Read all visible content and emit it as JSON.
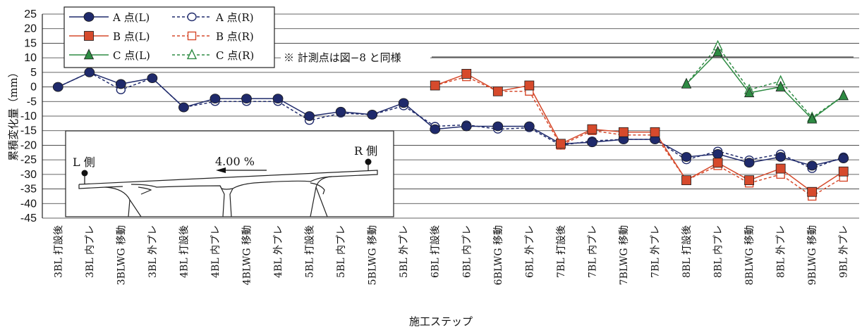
{
  "chart_data": {
    "type": "line",
    "title": "",
    "xlabel": "施工ステップ",
    "ylabel": "累積変化量（mm）",
    "ylim": [
      -45,
      25
    ],
    "yticks": [
      25,
      20,
      15,
      10,
      5,
      0,
      -5,
      -10,
      -15,
      -20,
      -25,
      -30,
      -35,
      -40,
      -45
    ],
    "grid": true,
    "legend_position": "top-left",
    "categories": [
      "3BL 打設後",
      "3BL 内プレ",
      "3BLWG 移動",
      "3BL 外プレ",
      "4BL 打設後",
      "4BL 内プレ",
      "4BLWG 移動",
      "4BL 外プレ",
      "5BL 打設後",
      "5BL 内プレ",
      "5BLWG 移動",
      "5BL 外プレ",
      "6BL 打設後",
      "6BL 内プレ",
      "6BLWG 移動",
      "6BL 外プレ",
      "7BL 打設後",
      "7BL 内プレ",
      "7BLWG 移動",
      "7BL 外プレ",
      "8BL 打設後",
      "8BL 内プレ",
      "8BLWG 移動",
      "8BL 外プレ",
      "9BLWG 移動",
      "9BL 外プレ"
    ],
    "series": [
      {
        "name": "A 点(L)",
        "color": "#1f2a6b",
        "marker": "circle-filled",
        "line": "solid",
        "values": [
          0,
          5,
          1,
          3,
          -7,
          -4,
          -4,
          -4,
          -10,
          -8.5,
          -9.5,
          -5.5,
          -14.5,
          -13.5,
          -13.5,
          -13.5,
          -19.5,
          -19,
          -18,
          -18,
          -24,
          -23,
          -26,
          -24,
          -27,
          -24.5
        ]
      },
      {
        "name": "A 点(R)",
        "color": "#1f2a6b",
        "marker": "circle-open",
        "line": "dashed",
        "values": [
          0,
          5,
          -1,
          3,
          -7,
          -5,
          -5,
          -5,
          -11.5,
          -9,
          -9.5,
          -6.5,
          -13.5,
          -13,
          -14.5,
          -14,
          -20,
          -18.5,
          -18,
          -18,
          -25,
          -22,
          -25,
          -23,
          -28,
          -24
        ]
      },
      {
        "name": "B 点(L)",
        "color": "#d64a2c",
        "marker": "square-filled",
        "line": "solid",
        "values": [
          null,
          null,
          null,
          null,
          null,
          null,
          null,
          null,
          null,
          null,
          null,
          null,
          0.5,
          4.5,
          -1.5,
          0.5,
          -19.5,
          -14.5,
          -15.5,
          -15.5,
          -32,
          -26,
          -32,
          -28,
          -36,
          -29
        ]
      },
      {
        "name": "B 点(R)",
        "color": "#d64a2c",
        "marker": "square-open",
        "line": "dashed",
        "values": [
          null,
          null,
          null,
          null,
          null,
          null,
          null,
          null,
          null,
          null,
          null,
          null,
          0.5,
          3.5,
          -1.5,
          -1.5,
          -20,
          -15,
          -16.5,
          -16.5,
          -32,
          -27,
          -33,
          -30,
          -37.5,
          -31
        ]
      },
      {
        "name": "C 点(L)",
        "color": "#2e8b43",
        "marker": "triangle-filled",
        "line": "solid",
        "values": [
          null,
          null,
          null,
          null,
          null,
          null,
          null,
          null,
          null,
          null,
          null,
          null,
          null,
          null,
          null,
          null,
          null,
          null,
          null,
          null,
          1,
          12,
          -2,
          0,
          -11,
          -3
        ]
      },
      {
        "name": "C 点(R)",
        "color": "#2e8b43",
        "marker": "triangle-open",
        "line": "dashed",
        "values": [
          null,
          null,
          null,
          null,
          null,
          null,
          null,
          null,
          null,
          null,
          null,
          null,
          null,
          null,
          null,
          null,
          null,
          null,
          null,
          null,
          1,
          14,
          -1,
          2,
          -10.5,
          -3
        ]
      }
    ],
    "annotation": "※ 計測点は図−8 と同様",
    "inset": {
      "left_label": "L 側",
      "right_label": "R 側",
      "slope_label": "4.00 %"
    }
  }
}
